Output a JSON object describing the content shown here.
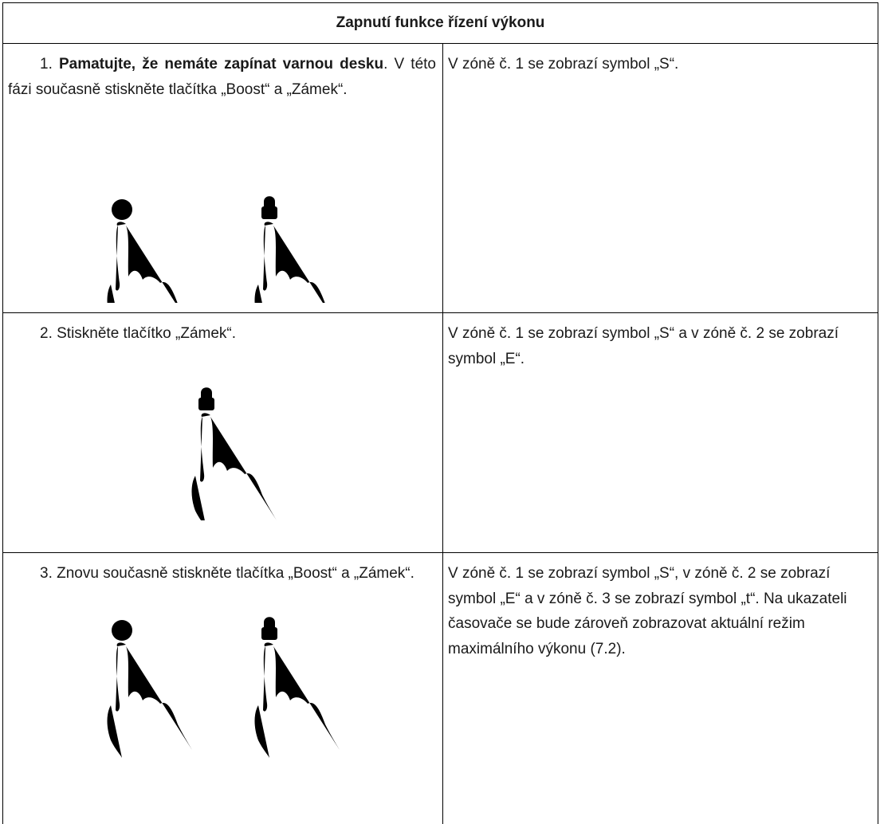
{
  "table": {
    "title": "Zapnutí funkce řízení výkonu",
    "rows": [
      {
        "left": [
          "1. ",
          "Pamatujte, že nemáte zapínat varnou desku",
          ". V této fázi současně stiskněte tlačítka „Boost“ a „Zámek“."
        ],
        "right": "V zóně č. 1 se zobrazí symbol „S“."
      },
      {
        "left": [
          "2. Stiskněte tlačítko „Zámek“."
        ],
        "right": "V zóně č. 1 se zobrazí symbol „S“ a v zóně č. 2 se zobrazí symbol „E“."
      },
      {
        "left": [
          "3. Znovu současně stiskněte tlačítka „Boost“ a „Zámek“."
        ],
        "right": "V zóně č. 1 se zobrazí symbol „S“, v zóně č. 2 se zobrazí symbol „E“ a v zóně č. 3 se zobrazí symbol „t“. Na ukazateli časovače se bude zároveň zobrazovat aktuální režim maximálního výkonu (7.2)."
      }
    ]
  }
}
